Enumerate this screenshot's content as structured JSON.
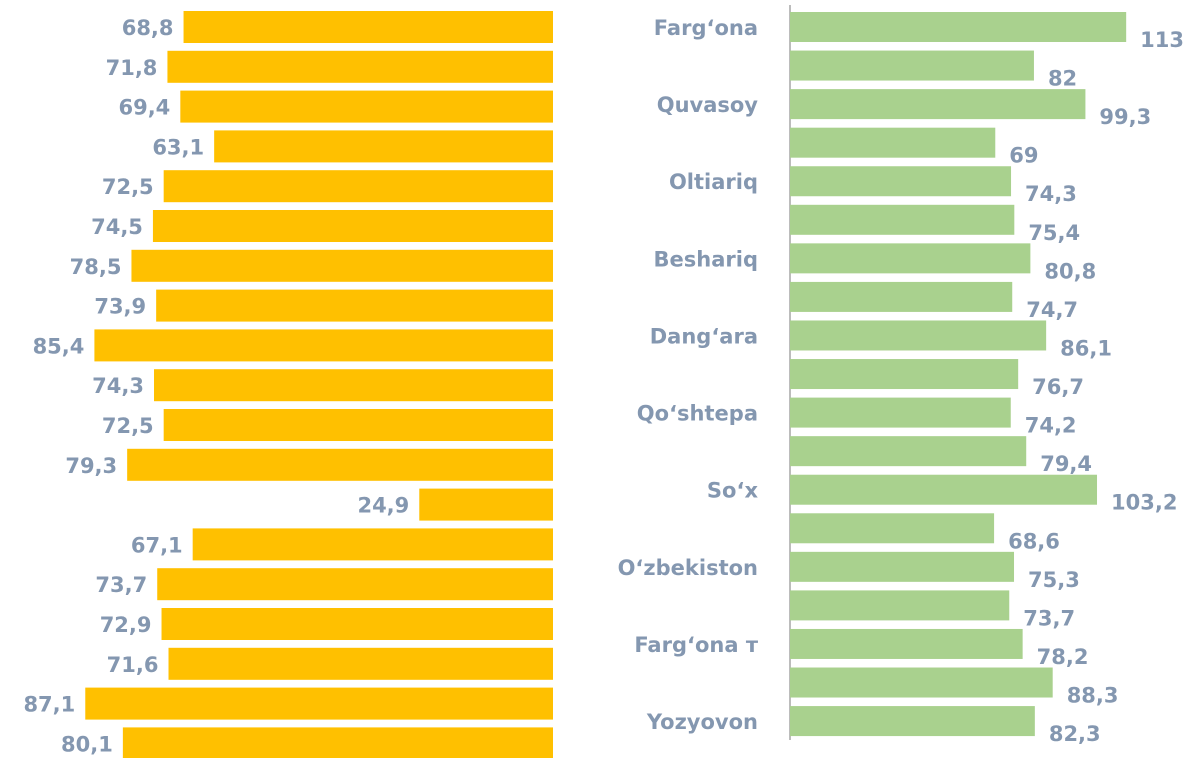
{
  "chart_data": [
    {
      "type": "bar",
      "orientation": "horizontal",
      "x_reversed": true,
      "color": "#ffc000",
      "categories": [
        null,
        null,
        null,
        null,
        null,
        null,
        null,
        null,
        null,
        null,
        null,
        null,
        null,
        null,
        null,
        null,
        null,
        null,
        null
      ],
      "values": [
        68.8,
        71.8,
        69.4,
        63.1,
        72.5,
        74.5,
        78.5,
        73.9,
        85.4,
        74.3,
        72.5,
        79.3,
        24.9,
        67.1,
        73.7,
        72.9,
        71.6,
        87.1,
        80.1
      ],
      "value_labels": [
        "68,8",
        "71,8",
        "69,4",
        "63,1",
        "72,5",
        "74,5",
        "78,5",
        "73,9",
        "85,4",
        "74,3",
        "72,5",
        "79,3",
        "24,9",
        "67,1",
        "73,7",
        "72,9",
        "71,6",
        "87,1",
        "80,1"
      ],
      "xlim": [
        0,
        100
      ]
    },
    {
      "type": "bar",
      "orientation": "horizontal",
      "x_reversed": false,
      "color": "#a9d18e",
      "categories": [
        "Farg‘ona",
        null,
        "Quvasoy",
        null,
        "Oltiariq",
        null,
        "Beshariq",
        null,
        "Dang‘ara",
        null,
        "Qo‘shtepa",
        null,
        "So‘x",
        null,
        "O‘zbekiston",
        null,
        "Farg‘ona т",
        null,
        "Yozyovon"
      ],
      "values": [
        113,
        82,
        99.3,
        69,
        74.3,
        75.4,
        80.8,
        74.7,
        86.1,
        76.7,
        74.2,
        79.4,
        103.2,
        68.6,
        75.3,
        73.7,
        78.2,
        88.3,
        82.3
      ],
      "value_labels": [
        "113",
        "82",
        "99,3",
        "69",
        "74,3",
        "75,4",
        "80,8",
        "74,7",
        "86,1",
        "76,7",
        "74,2",
        "79,4",
        "103,2",
        "68,6",
        "75,3",
        "73,7",
        "78,2",
        "88,3",
        "82,3"
      ],
      "xlim": [
        0,
        120
      ]
    }
  ]
}
